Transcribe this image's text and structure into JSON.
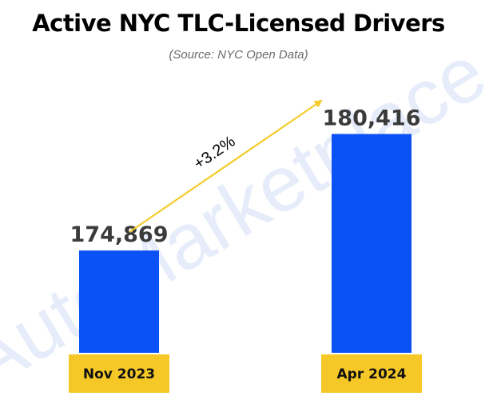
{
  "chart_data": {
    "type": "bar",
    "title": "Active NYC TLC-Licensed Drivers",
    "subtitle": "(Source: NYC Open Data)",
    "categories": [
      "Nov 2023",
      "Apr 2024"
    ],
    "values": [
      174869,
      180416
    ],
    "value_labels": [
      "174,869",
      "180,416"
    ],
    "ylim": [
      170000,
      181500
    ],
    "annotation": "+3.2%",
    "xlabel": "",
    "ylabel": "",
    "grid": false
  },
  "watermark": "AutoMarketplace",
  "colors": {
    "bar": "#0a52f5",
    "category_box": "#f6c827",
    "arrow": "#f3cc2c"
  }
}
